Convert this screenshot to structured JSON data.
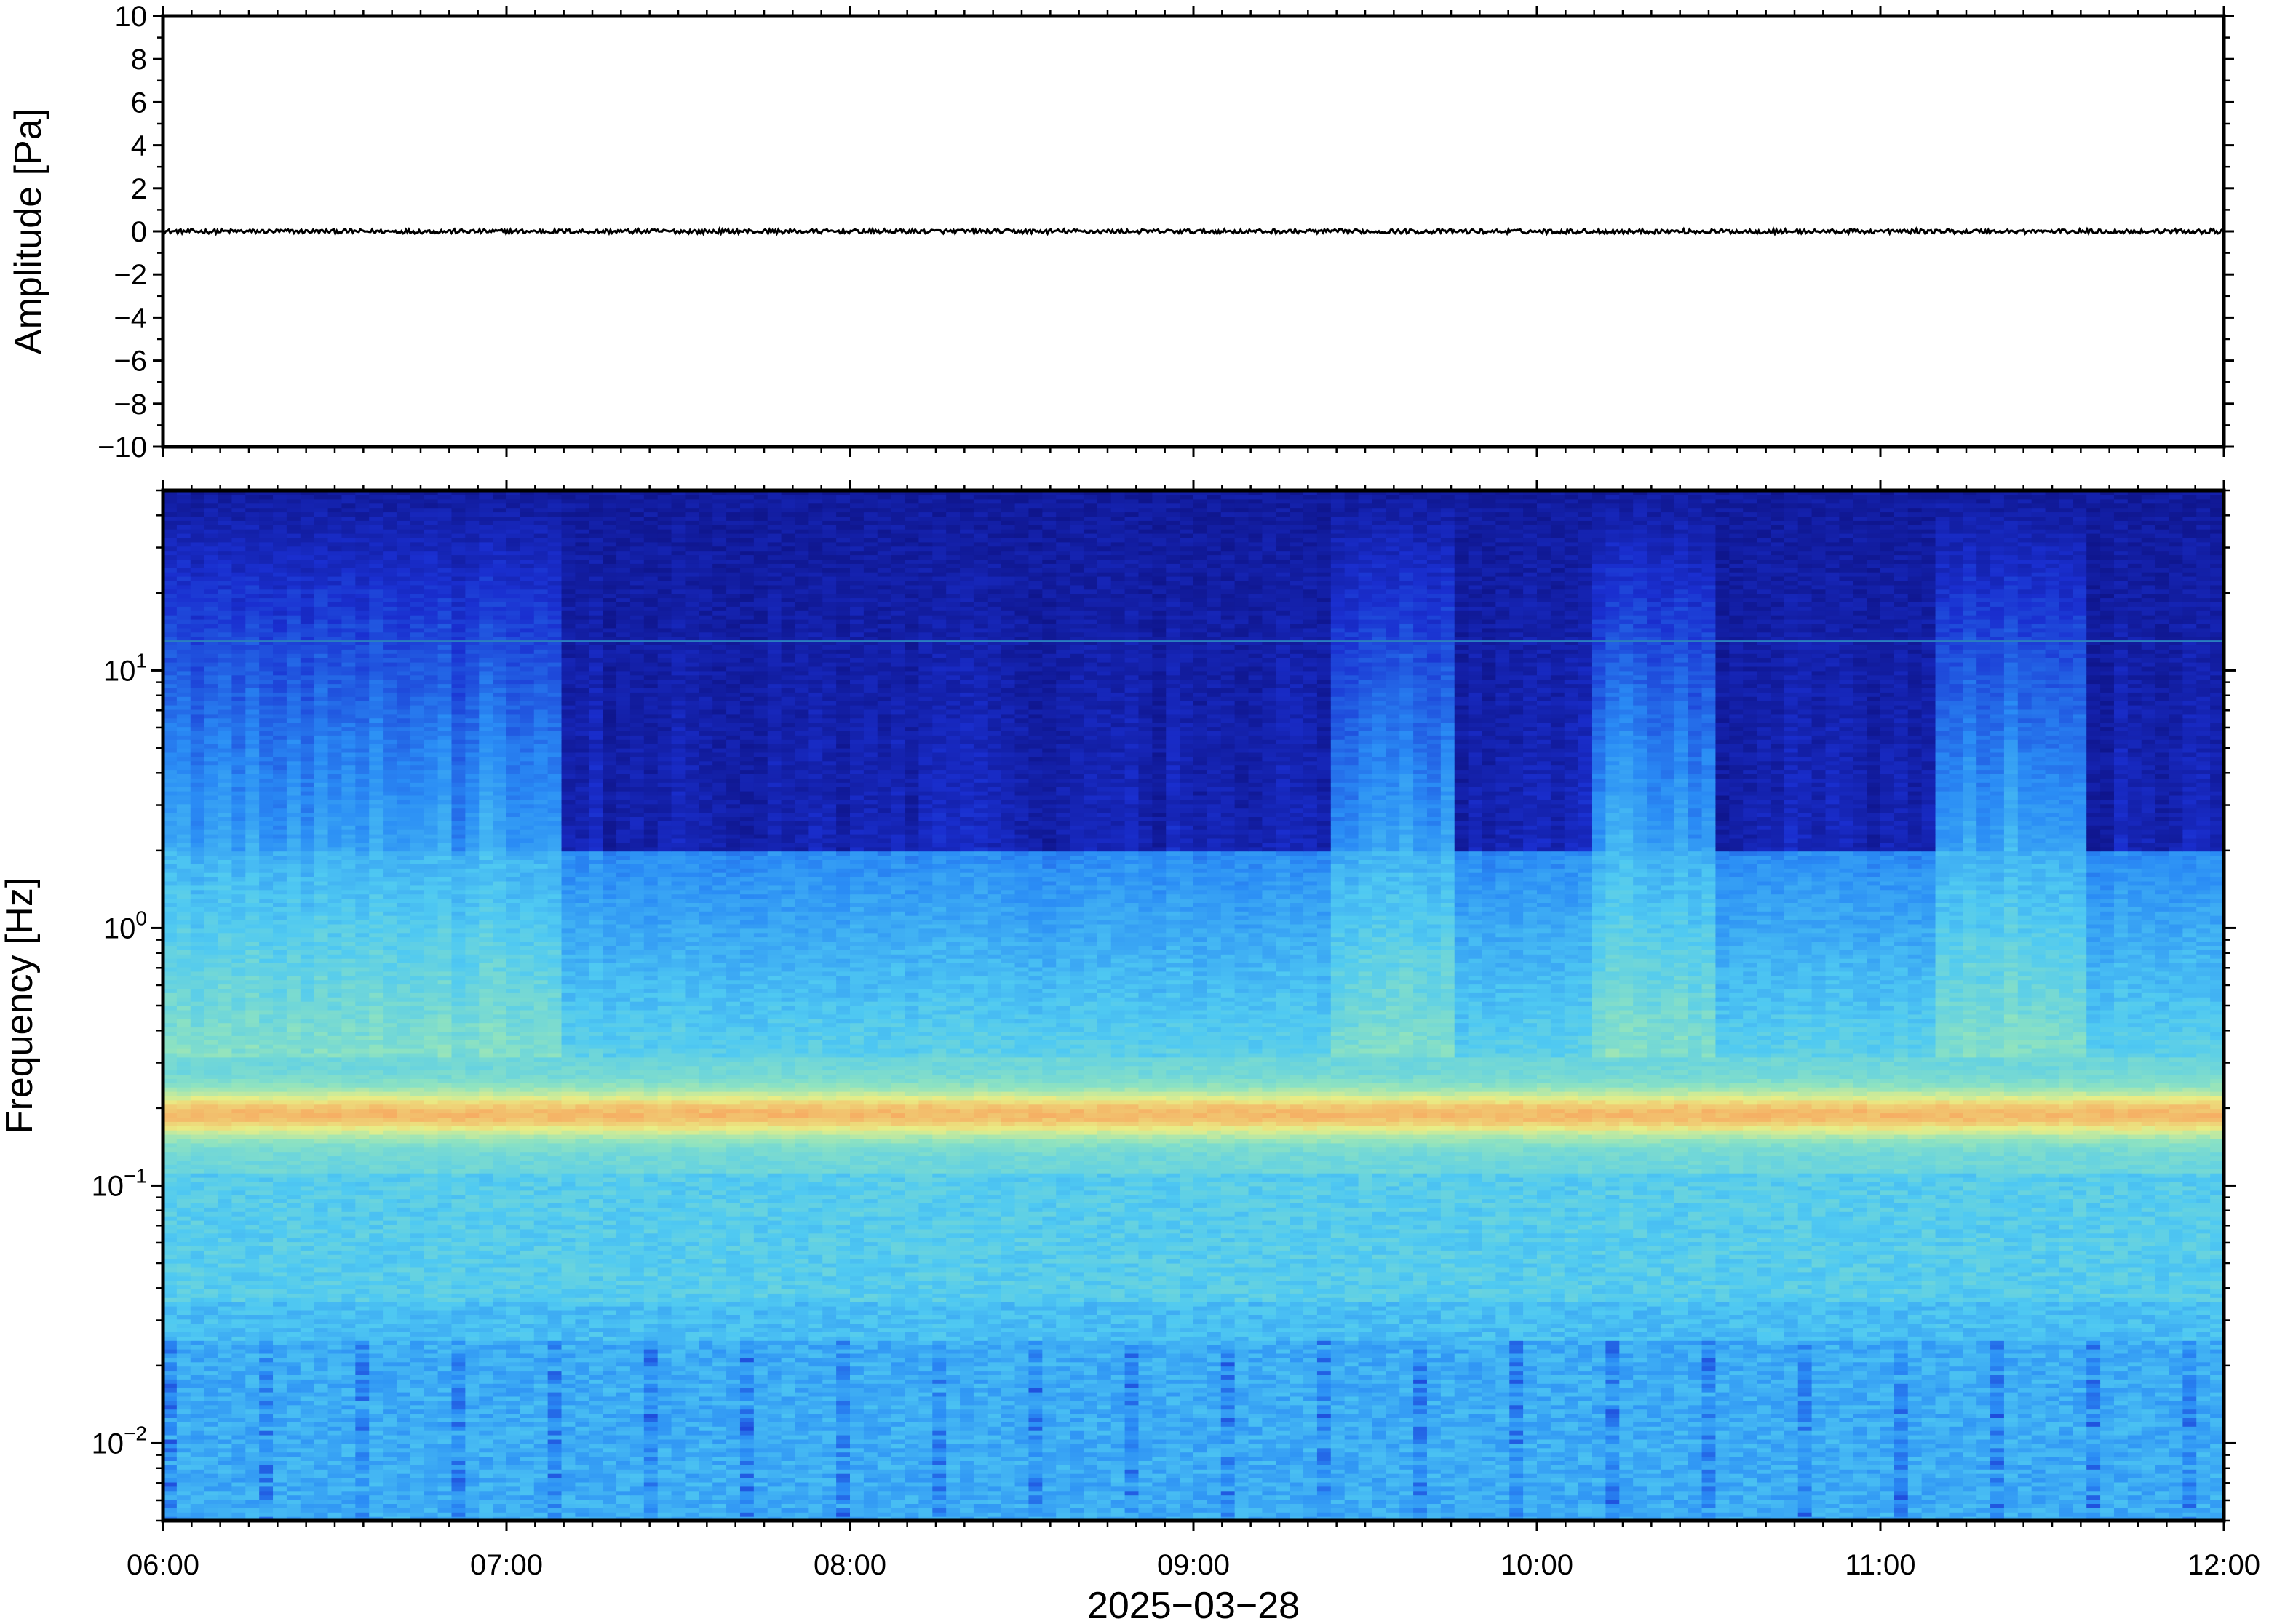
{
  "chart_data": [
    {
      "type": "line",
      "panel": "waveform",
      "ylabel": "Amplitude [Pa]",
      "ylim": [
        -10,
        10
      ],
      "yticks": [
        10,
        8,
        6,
        4,
        2,
        0,
        -2,
        -4,
        -6,
        -8,
        -10
      ],
      "ytick_labels": [
        "10",
        "8",
        "6",
        "4",
        "2",
        "0",
        "−2",
        "−4",
        "−6",
        "−8",
        "−10"
      ],
      "x_range": [
        "06:00",
        "12:00"
      ],
      "series": [
        {
          "amplitude_range": [
            -0.1,
            0.1
          ],
          "color": "#000000"
        }
      ],
      "grid": false
    },
    {
      "type": "heatmap",
      "panel": "spectrogram",
      "ylabel": "Frequency [Hz]",
      "yscale": "log",
      "ylim": [
        0.005,
        50
      ],
      "yticks": [
        10,
        1,
        0.1,
        0.01
      ],
      "ytick_labels": [
        {
          "base": "10",
          "exp": "1"
        },
        {
          "base": "10",
          "exp": "0"
        },
        {
          "base": "10",
          "exp": "−1"
        },
        {
          "base": "10",
          "exp": "−2"
        }
      ],
      "xlabel": "2025−03−28",
      "xticks": [
        "06:00",
        "07:00",
        "08:00",
        "09:00",
        "10:00",
        "11:00",
        "12:00"
      ],
      "colormap": "jet",
      "colormap_stops": [
        "#0a0a6e",
        "#1a2fd0",
        "#2a8cf5",
        "#4fc9f2",
        "#8fe3c0",
        "#e9ee86",
        "#f7a860"
      ],
      "features": {
        "microseism_peak_hz": 0.19,
        "narrowband_line_hz": 13,
        "active_intervals": [
          [
            "06:00",
            "07:10"
          ],
          [
            "09:25",
            "09:45"
          ],
          [
            "10:10",
            "10:30"
          ],
          [
            "11:10",
            "11:35"
          ]
        ]
      },
      "grid": false
    }
  ]
}
